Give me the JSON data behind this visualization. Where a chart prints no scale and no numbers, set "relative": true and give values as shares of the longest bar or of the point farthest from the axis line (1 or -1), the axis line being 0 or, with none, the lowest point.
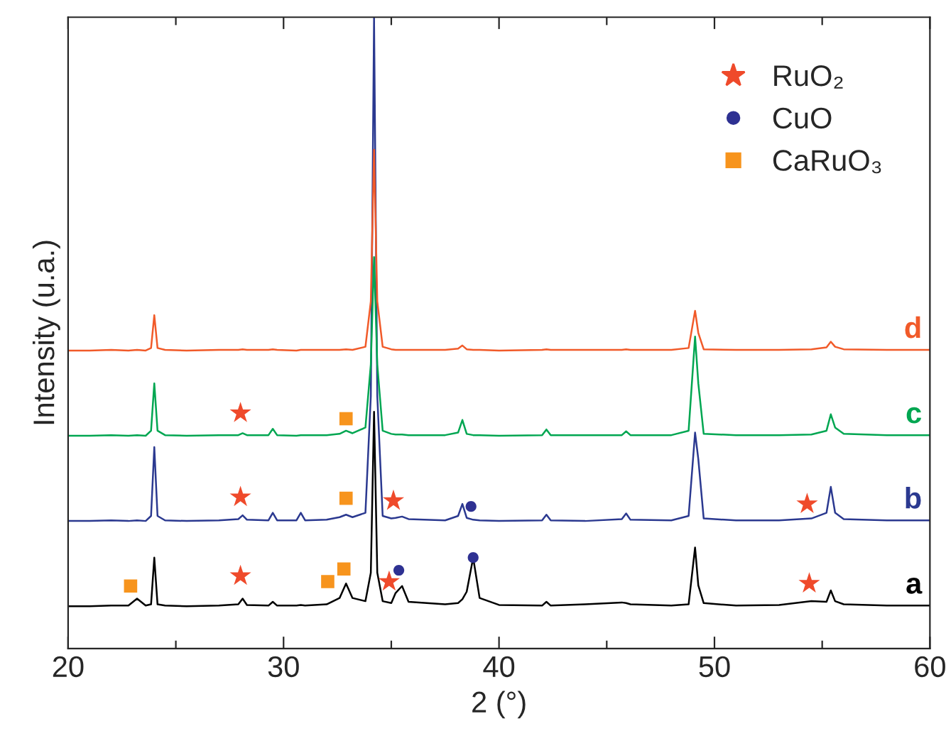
{
  "chart_data": {
    "type": "line",
    "relative": true,
    "xlabel": "2 (°)",
    "ylabel": "Intensity (u.a.)",
    "xlim": [
      20,
      60
    ],
    "xticks": [
      20,
      {
        "value": 25,
        "label": null
      },
      30,
      {
        "value": 35,
        "label": null
      },
      40,
      {
        "value": 45,
        "label": null
      },
      50,
      {
        "value": 55,
        "label": null
      },
      60
    ],
    "x": [
      20,
      21,
      22,
      22.8,
      23.2,
      23.6,
      23.85,
      24.0,
      24.15,
      24.5,
      25.5,
      27,
      27.9,
      28.1,
      28.3,
      29.3,
      29.5,
      29.7,
      30.6,
      30.8,
      31.0,
      32.0,
      32.6,
      32.9,
      33.2,
      33.8,
      34.05,
      34.2,
      34.35,
      34.6,
      35.0,
      35.2,
      35.5,
      35.8,
      37.5,
      38.1,
      38.3,
      38.5,
      38.8,
      39.1,
      40,
      42.0,
      42.2,
      42.4,
      44,
      45.7,
      45.9,
      46.1,
      48,
      48.8,
      49.1,
      49.25,
      49.5,
      51,
      53,
      54.5,
      55.2,
      55.4,
      55.6,
      56,
      58,
      60
    ],
    "series": [
      {
        "name": "a",
        "color": "#000000",
        "values": [
          0.067,
          0.067,
          0.068,
          0.068,
          0.079,
          0.068,
          0.07,
          0.144,
          0.07,
          0.068,
          0.067,
          0.068,
          0.07,
          0.079,
          0.069,
          0.068,
          0.074,
          0.068,
          0.068,
          0.069,
          0.068,
          0.07,
          0.08,
          0.103,
          0.08,
          0.075,
          0.12,
          0.375,
          0.12,
          0.075,
          0.072,
          0.088,
          0.099,
          0.074,
          0.07,
          0.072,
          0.078,
          0.09,
          0.144,
          0.08,
          0.069,
          0.068,
          0.074,
          0.068,
          0.07,
          0.073,
          0.072,
          0.07,
          0.068,
          0.07,
          0.16,
          0.1,
          0.072,
          0.068,
          0.069,
          0.075,
          0.074,
          0.092,
          0.075,
          0.07,
          0.068,
          0.068
        ]
      },
      {
        "name": "b",
        "color": "#2b3990",
        "values": [
          0.202,
          0.202,
          0.203,
          0.202,
          0.203,
          0.202,
          0.21,
          0.319,
          0.21,
          0.203,
          0.202,
          0.203,
          0.205,
          0.211,
          0.204,
          0.203,
          0.215,
          0.203,
          0.203,
          0.215,
          0.203,
          0.204,
          0.208,
          0.212,
          0.208,
          0.215,
          0.4,
          1.0,
          0.4,
          0.21,
          0.206,
          0.207,
          0.209,
          0.205,
          0.203,
          0.21,
          0.229,
          0.207,
          0.204,
          0.203,
          0.202,
          0.203,
          0.212,
          0.203,
          0.202,
          0.205,
          0.214,
          0.204,
          0.203,
          0.21,
          0.342,
          0.3,
          0.206,
          0.203,
          0.203,
          0.206,
          0.215,
          0.256,
          0.215,
          0.205,
          0.203,
          0.203
        ]
      },
      {
        "name": "c",
        "color": "#00a651",
        "values": [
          0.337,
          0.337,
          0.338,
          0.337,
          0.338,
          0.337,
          0.345,
          0.42,
          0.345,
          0.338,
          0.337,
          0.338,
          0.338,
          0.341,
          0.338,
          0.338,
          0.348,
          0.338,
          0.337,
          0.338,
          0.338,
          0.338,
          0.34,
          0.345,
          0.341,
          0.35,
          0.45,
          0.62,
          0.45,
          0.345,
          0.34,
          0.339,
          0.339,
          0.338,
          0.338,
          0.342,
          0.362,
          0.34,
          0.338,
          0.338,
          0.337,
          0.338,
          0.347,
          0.338,
          0.338,
          0.338,
          0.344,
          0.338,
          0.338,
          0.345,
          0.494,
          0.42,
          0.34,
          0.338,
          0.338,
          0.339,
          0.345,
          0.371,
          0.35,
          0.34,
          0.338,
          0.338
        ]
      },
      {
        "name": "d",
        "color": "#f15a29",
        "values": [
          0.472,
          0.472,
          0.473,
          0.472,
          0.473,
          0.472,
          0.476,
          0.528,
          0.476,
          0.473,
          0.472,
          0.473,
          0.473,
          0.474,
          0.473,
          0.473,
          0.474,
          0.473,
          0.472,
          0.473,
          0.473,
          0.473,
          0.473,
          0.474,
          0.473,
          0.478,
          0.55,
          0.79,
          0.55,
          0.478,
          0.474,
          0.473,
          0.473,
          0.473,
          0.473,
          0.475,
          0.48,
          0.474,
          0.473,
          0.473,
          0.472,
          0.473,
          0.474,
          0.473,
          0.473,
          0.473,
          0.474,
          0.473,
          0.473,
          0.476,
          0.535,
          0.5,
          0.474,
          0.473,
          0.473,
          0.474,
          0.477,
          0.486,
          0.478,
          0.474,
          0.473,
          0.473
        ]
      },
      {
        "name": "RuO₂",
        "type": "scatter",
        "marker": "star",
        "color": "#ef4a2b",
        "x": [
          28.0,
          28.0,
          35.1,
          54.3,
          28.0,
          34.9,
          54.4
        ],
        "values": [
          0.373,
          0.24,
          0.234,
          0.229,
          0.115,
          0.106,
          0.103
        ]
      },
      {
        "name": "CuO",
        "type": "scatter",
        "marker": "circle",
        "color": "#2e3192",
        "x": [
          38.7,
          35.35,
          38.8
        ],
        "values": [
          0.225,
          0.124,
          0.144
        ]
      },
      {
        "name": "CaRuO₃",
        "type": "scatter",
        "marker": "square",
        "color": "#f7941d",
        "x": [
          32.9,
          32.9,
          22.9,
          32.05,
          32.8
        ],
        "values": [
          0.364,
          0.238,
          0.099,
          0.106,
          0.126
        ]
      }
    ],
    "legend": "top right"
  }
}
